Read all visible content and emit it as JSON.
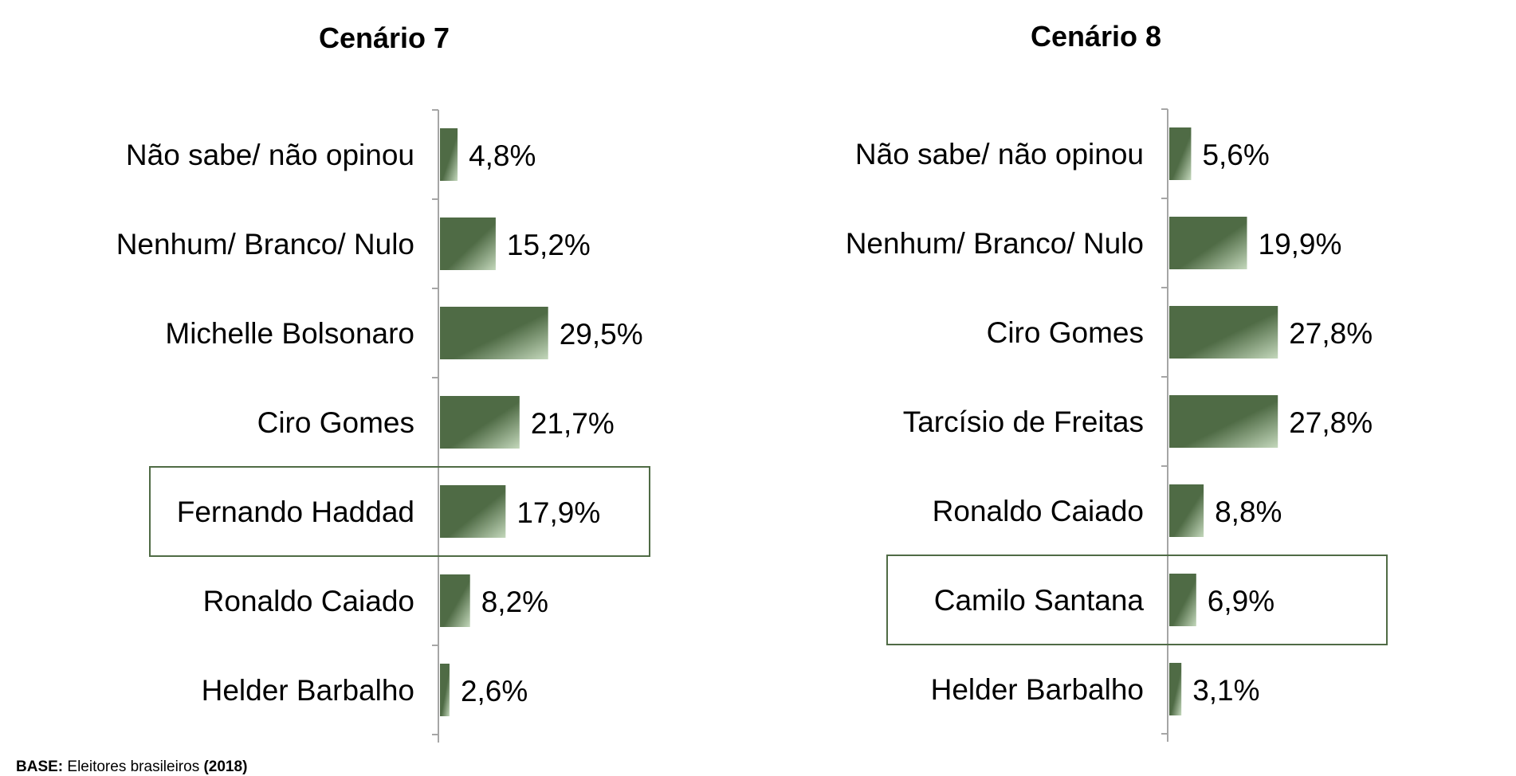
{
  "chart_data": [
    {
      "type": "bar",
      "orientation": "horizontal",
      "title": "Cenário 7",
      "categories": [
        "Não sabe/ não opinou",
        "Nenhum/ Branco/ Nulo",
        "Michelle Bolsonaro",
        "Ciro Gomes",
        "Fernando Haddad",
        "Ronaldo Caiado",
        "Helder Barbalho"
      ],
      "values": [
        4.8,
        15.2,
        29.5,
        21.7,
        17.9,
        8.2,
        2.6
      ],
      "value_labels": [
        "4,8%",
        "15,2%",
        "29,5%",
        "21,7%",
        "17,9%",
        "8,2%",
        "2,6%"
      ],
      "highlighted": "Fernando Haddad",
      "bar_color": "#4f6b45",
      "bar_gradient_end": "#c4d8bc",
      "grid": false,
      "legend": "none"
    },
    {
      "type": "bar",
      "orientation": "horizontal",
      "title": "Cenário 8",
      "categories": [
        "Não sabe/ não opinou",
        "Nenhum/ Branco/ Nulo",
        "Ciro Gomes",
        "Tarcísio de Freitas",
        "Ronaldo Caiado",
        "Camilo Santana",
        "Helder Barbalho"
      ],
      "values": [
        5.6,
        19.9,
        27.8,
        27.8,
        8.8,
        6.9,
        3.1
      ],
      "value_labels": [
        "5,6%",
        "19,9%",
        "27,8%",
        "27,8%",
        "8,8%",
        "6,9%",
        "3,1%"
      ],
      "highlighted": "Camilo Santana",
      "bar_color": "#4f6b45",
      "bar_gradient_end": "#c4d8bc",
      "grid": false,
      "legend": "none"
    }
  ],
  "footnote": {
    "base_label": "BASE:",
    "base_text": " Eleitores brasileiros ",
    "year": "(2018)"
  }
}
